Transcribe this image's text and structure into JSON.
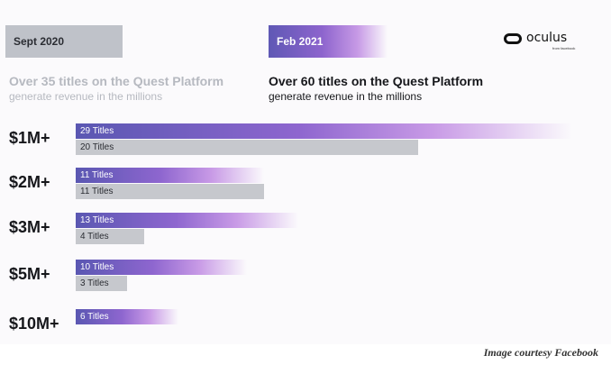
{
  "header": {
    "left_tag": "Sept 2020",
    "right_tag": "Feb 2021",
    "logo_text": "oculus",
    "logo_sub": "from facebook"
  },
  "subtitle_left": {
    "headline": "Over 35 titles on the Quest Platform",
    "line2": "generate revenue in the millions"
  },
  "subtitle_right": {
    "headline": "Over 60 titles on the Quest Platform",
    "line2": "generate revenue in the millions"
  },
  "credit": "Image courtesy Facebook",
  "colors": {
    "feb_2021": "#8d64cd",
    "sept_2020": "#c6c8cd"
  },
  "chart_data": {
    "type": "bar",
    "orientation": "horizontal",
    "categories": [
      "$1M+",
      "$2M+",
      "$3M+",
      "$5M+",
      "$10M+"
    ],
    "series": [
      {
        "name": "Feb 2021",
        "values": [
          29,
          11,
          13,
          10,
          6
        ],
        "labels": [
          "29 Titles",
          "11 Titles",
          "13 Titles",
          "10 Titles",
          "6 Titles"
        ]
      },
      {
        "name": "Sept 2020",
        "values": [
          20,
          11,
          4,
          3,
          null
        ],
        "labels": [
          "20 Titles",
          "11 Titles",
          "4 Titles",
          "3 Titles",
          ""
        ]
      }
    ],
    "title": "",
    "xlabel": "",
    "ylabel": ""
  }
}
